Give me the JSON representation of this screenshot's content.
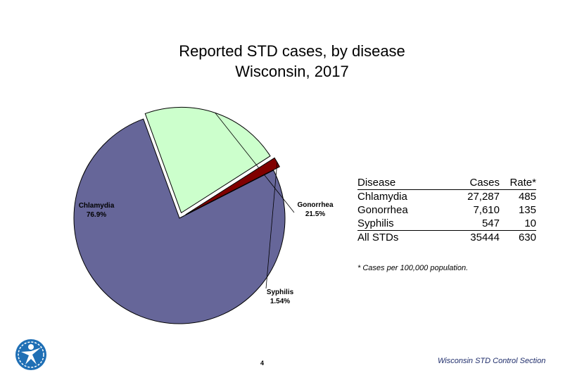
{
  "chart_data": {
    "type": "pie",
    "title": "Reported STD cases, by disease",
    "subtitle": "Wisconsin, 2017",
    "slices": [
      {
        "name": "Chlamydia",
        "label": "Chlamydia",
        "percent_label": "76.9%",
        "value": 76.9,
        "color": "#666699"
      },
      {
        "name": "Gonorrhea",
        "label": "Gonorrhea",
        "percent_label": "21.5%",
        "value": 21.5,
        "color": "#ccffcc"
      },
      {
        "name": "Syphilis",
        "label": "Syphilis",
        "percent_label": "1.54%",
        "value": 1.54,
        "color": "#800000"
      }
    ]
  },
  "table": {
    "headers": [
      "Disease",
      "Cases",
      "Rate*"
    ],
    "rows": [
      [
        "Chlamydia",
        "27,287",
        "485"
      ],
      [
        "Gonorrhea",
        "7,610",
        "135"
      ],
      [
        "Syphilis",
        "547",
        "10"
      ],
      [
        "All STDs",
        "35444",
        "630"
      ]
    ]
  },
  "footnote": "* Cases per 100,000 population.",
  "credit": "Wisconsin STD Control Section",
  "page_number": "4"
}
